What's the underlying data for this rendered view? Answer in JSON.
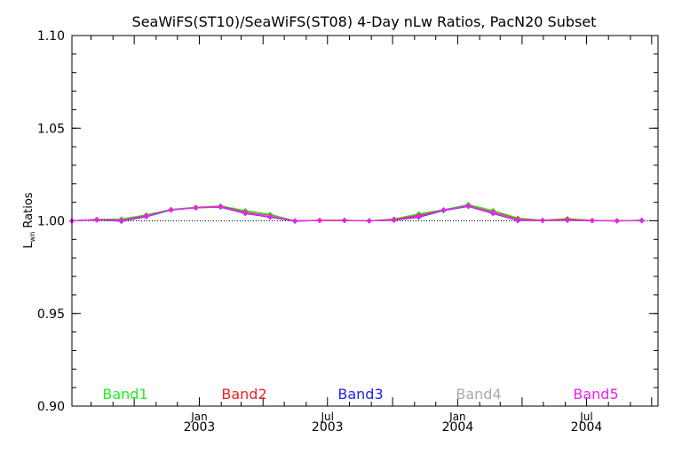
{
  "chart_data": {
    "type": "line",
    "title": "SeaWiFS(ST10)/SeaWiFS(ST08) 4-Day nLw Ratios, PacN20 Subset",
    "ylabel_main": "L",
    "ylabel_sub": "wn",
    "ylabel_rest": " Ratios",
    "ylim": [
      0.9,
      1.1
    ],
    "y_ticks": [
      "0.90",
      "0.95",
      "1.00",
      "1.05",
      "1.10"
    ],
    "x_axis": "date",
    "xlim": [
      "2002-07-05",
      "2004-10-10"
    ],
    "x_tick_labels": [
      {
        "date": "2003-01-01",
        "month": "Jan",
        "year": "2003"
      },
      {
        "date": "2003-07-01",
        "month": "Jul",
        "year": "2003"
      },
      {
        "date": "2004-01-01",
        "month": "Jan",
        "year": "2004"
      },
      {
        "date": "2004-07-01",
        "month": "Jul",
        "year": "2004"
      }
    ],
    "reference_line": 1.0,
    "grid": false,
    "series": [
      {
        "name": "Band1",
        "color": "#22ee22",
        "symbol": "diamond",
        "x": [
          "2002-07-05",
          "2002-08-09",
          "2002-09-13",
          "2002-10-18",
          "2002-11-22",
          "2002-12-27",
          "2003-01-31",
          "2003-03-07",
          "2003-04-11",
          "2003-05-16",
          "2003-06-20",
          "2003-07-25",
          "2003-08-29",
          "2003-10-03",
          "2003-11-07",
          "2003-12-12",
          "2004-01-16",
          "2004-02-20",
          "2004-03-26",
          "2004-04-30",
          "2004-06-04",
          "2004-07-09",
          "2004-08-13",
          "2004-09-17"
        ],
        "values": [
          1.0,
          1.0008,
          1.001,
          1.0032,
          1.0062,
          1.0074,
          1.008,
          1.0055,
          1.0035,
          1.0,
          1.0003,
          1.0003,
          1.0,
          1.001,
          1.0038,
          1.006,
          1.0088,
          1.0055,
          1.0015,
          1.0003,
          1.0012,
          1.0003,
          1.0,
          1.0
        ]
      },
      {
        "name": "Band2",
        "color": "#ee2222",
        "symbol": "diamond",
        "x": [
          "2002-07-05",
          "2002-08-09",
          "2002-09-13",
          "2002-10-18",
          "2002-11-22",
          "2002-12-27",
          "2003-01-31",
          "2003-03-07",
          "2003-04-11",
          "2003-05-16",
          "2003-06-20",
          "2003-07-25",
          "2003-08-29",
          "2003-10-03",
          "2003-11-07",
          "2003-12-12",
          "2004-01-16",
          "2004-02-20",
          "2004-03-26",
          "2004-04-30",
          "2004-06-04",
          "2004-07-09",
          "2004-08-13",
          "2004-09-17"
        ],
        "values": [
          1.0,
          1.0007,
          1.0005,
          1.0028,
          1.006,
          1.0072,
          1.0078,
          1.0048,
          1.0028,
          1.0,
          1.0003,
          1.0003,
          1.0,
          1.0007,
          1.003,
          1.0058,
          1.0082,
          1.0048,
          1.001,
          1.0003,
          1.0008,
          1.0002,
          1.0,
          1.0002
        ]
      },
      {
        "name": "Band3",
        "color": "#2222ee",
        "symbol": "diamond",
        "x": [
          "2002-07-05",
          "2002-08-09",
          "2002-09-13",
          "2002-10-18",
          "2002-11-22",
          "2002-12-27",
          "2003-01-31",
          "2003-03-07",
          "2003-04-11",
          "2003-05-16",
          "2003-06-20",
          "2003-07-25",
          "2003-08-29",
          "2003-10-03",
          "2003-11-07",
          "2003-12-12",
          "2004-01-16",
          "2004-02-20",
          "2004-03-26",
          "2004-04-30",
          "2004-06-04",
          "2004-07-09",
          "2004-08-13",
          "2004-09-17"
        ],
        "values": [
          1.0,
          1.0005,
          0.9998,
          1.0022,
          1.0058,
          1.007,
          1.0074,
          1.004,
          1.002,
          0.9998,
          1.0002,
          1.0002,
          1.0,
          1.0003,
          1.002,
          1.0055,
          1.0078,
          1.004,
          1.0002,
          1.0002,
          1.0003,
          1.0001,
          1.0,
          1.0003
        ]
      },
      {
        "name": "Band4",
        "color": "#aaaaaa",
        "symbol": "diamond",
        "x": [
          "2002-07-05",
          "2002-08-09",
          "2002-09-13",
          "2002-10-18",
          "2002-11-22",
          "2002-12-27",
          "2003-01-31",
          "2003-03-07",
          "2003-04-11",
          "2003-05-16",
          "2003-06-20",
          "2003-07-25",
          "2003-08-29",
          "2003-10-03",
          "2003-11-07",
          "2003-12-12",
          "2004-01-16",
          "2004-02-20",
          "2004-03-26",
          "2004-04-30",
          "2004-06-04",
          "2004-07-09",
          "2004-08-13",
          "2004-09-17"
        ],
        "values": [
          1.0,
          1.0006,
          1.0003,
          1.0025,
          1.006,
          1.0071,
          1.0076,
          1.0044,
          1.0025,
          1.0,
          1.0002,
          1.0002,
          1.0,
          1.0005,
          1.0025,
          1.0057,
          1.008,
          1.0044,
          1.0006,
          1.0002,
          1.0005,
          1.0002,
          1.0,
          1.0002
        ]
      },
      {
        "name": "Band5",
        "color": "#ee22ee",
        "symbol": "diamond",
        "x": [
          "2002-07-05",
          "2002-08-09",
          "2002-09-13",
          "2002-10-18",
          "2002-11-22",
          "2002-12-27",
          "2003-01-31",
          "2003-03-07",
          "2003-04-11",
          "2003-05-16",
          "2003-06-20",
          "2003-07-25",
          "2003-08-29",
          "2003-10-03",
          "2003-11-07",
          "2003-12-12",
          "2004-01-16",
          "2004-02-20",
          "2004-03-26",
          "2004-04-30",
          "2004-06-04",
          "2004-07-09",
          "2004-08-13",
          "2004-09-17"
        ],
        "values": [
          1.0,
          1.0006,
          1.0001,
          1.0025,
          1.006,
          1.007,
          1.0076,
          1.0042,
          1.0022,
          1.0,
          1.0002,
          1.0002,
          1.0,
          1.0005,
          1.0025,
          1.0058,
          1.008,
          1.0042,
          1.0004,
          1.0002,
          1.0004,
          1.0001,
          1.0,
          1.0002
        ]
      }
    ]
  }
}
